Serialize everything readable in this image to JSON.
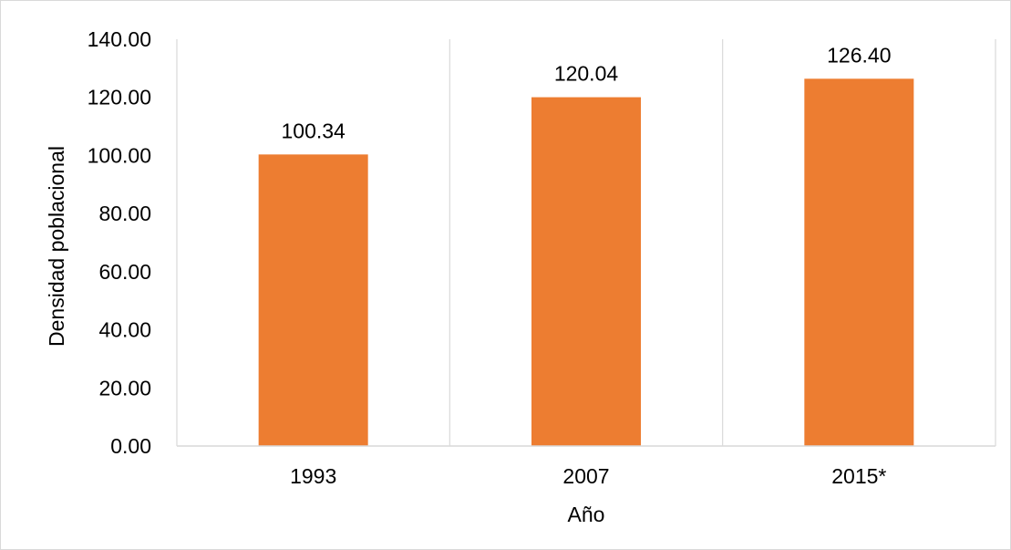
{
  "chart_data": {
    "type": "bar",
    "title": "",
    "xlabel": "Año",
    "ylabel": "Densidad poblacional",
    "categories": [
      "1993",
      "2007",
      "2015*"
    ],
    "values": [
      100.34,
      120.04,
      126.4
    ],
    "data_labels": [
      "100.34",
      "120.04",
      "126.40"
    ],
    "ylim": [
      0,
      140
    ],
    "y_ticks": [
      "0.00",
      "20.00",
      "40.00",
      "60.00",
      "80.00",
      "100.00",
      "120.00",
      "140.00"
    ],
    "y_tick_values": [
      0,
      20,
      40,
      60,
      80,
      100,
      120,
      140
    ],
    "grid": "vertical category separators",
    "legend": "none",
    "colors": {
      "bar": "#ed7d31",
      "grid": "#d9d9d9",
      "border": "#d9d9d9",
      "text": "#000000"
    }
  }
}
